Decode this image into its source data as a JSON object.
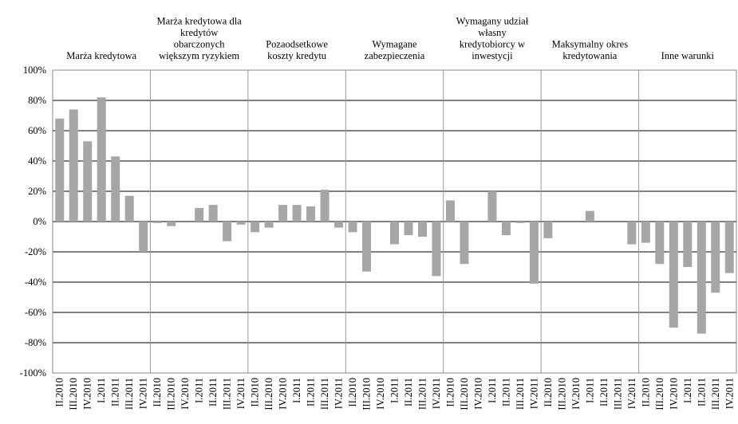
{
  "chart_data": {
    "type": "bar",
    "groups": [
      [
        "Marża kredytowa"
      ],
      [
        "Marża kredytowa dla",
        "kredytów",
        "obarczonych",
        "większym ryzykiem"
      ],
      [
        "Pozaodsetkowe",
        "koszty kredytu"
      ],
      [
        "Wymagane",
        "zabezpieczenia"
      ],
      [
        "Wymagany udział",
        "własny",
        "kredytobiorcy w",
        "inwestycji"
      ],
      [
        "Maksymalny okres",
        "kredytowania"
      ],
      [
        "Inne warunki"
      ]
    ],
    "categories": [
      "II.2010",
      "III.2010",
      "IV.2010",
      "I.2011",
      "II.2011",
      "III.2011",
      "IV.2011",
      "II.2010",
      "III.2010",
      "IV.2010",
      "I.2011",
      "II.2011",
      "III.2011",
      "IV.2011",
      "II.2010",
      "III.2010",
      "IV.2010",
      "I.2011",
      "II.2011",
      "III.2011",
      "IV.2011",
      "II.2010",
      "III.2010",
      "IV.2010",
      "I.2011",
      "II.2011",
      "III.2011",
      "IV.2011",
      "II.2010",
      "III.2010",
      "IV.2010",
      "I.2011",
      "II.2011",
      "III.2011",
      "IV.2011",
      "II.2010",
      "III.2010",
      "IV.2010",
      "I.2011",
      "II.2011",
      "III.2011",
      "IV.2011",
      "II.2010",
      "III.2010",
      "IV.2010",
      "I.2011",
      "II.2011",
      "III.2011",
      "IV.2011"
    ],
    "values": [
      68,
      74,
      53,
      82,
      43,
      17,
      -20,
      -1,
      -3,
      0,
      9,
      11,
      -13,
      -2,
      -7,
      -4,
      11,
      11,
      10,
      21,
      -4,
      -7,
      -33,
      0,
      -15,
      -9,
      -10,
      -36,
      14,
      -28,
      0,
      20,
      -9,
      -1,
      -41,
      -11,
      0,
      0,
      7,
      0,
      0,
      -15,
      -14,
      -28,
      -70,
      -30,
      -74,
      -47,
      -34
    ],
    "color": "#a6a6a6",
    "ylim": [
      -100,
      100
    ],
    "yticks": [
      {
        "value": -100,
        "label": "-100%"
      },
      {
        "value": -80,
        "label": "-80%"
      },
      {
        "value": -60,
        "label": "-60%"
      },
      {
        "value": -40,
        "label": "-40%"
      },
      {
        "value": -20,
        "label": "-20%"
      },
      {
        "value": 0,
        "label": "0%"
      },
      {
        "value": 20,
        "label": "20%"
      },
      {
        "value": 40,
        "label": "40%"
      },
      {
        "value": 60,
        "label": "60%"
      },
      {
        "value": 80,
        "label": "80%"
      },
      {
        "value": 100,
        "label": "100%"
      }
    ],
    "grid": true
  }
}
